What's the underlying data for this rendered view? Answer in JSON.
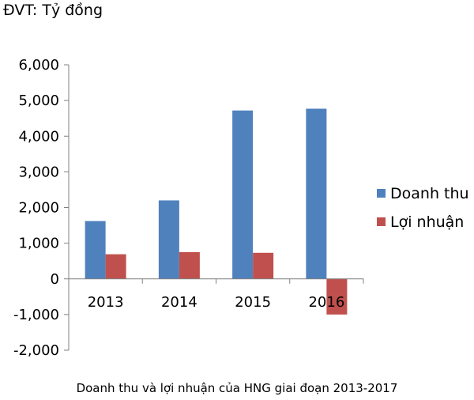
{
  "unit_label": "ĐVT: Tỷ đồng",
  "caption": "Doanh thu và lợi nhuận của HNG giai đoạn 2013-2017",
  "chart_data": {
    "type": "bar",
    "categories": [
      "2013",
      "2014",
      "2015",
      "2016"
    ],
    "series": [
      {
        "name": "Doanh thu",
        "color": "#4F81BD",
        "values": [
          1620,
          2200,
          4720,
          4770
        ]
      },
      {
        "name": "Lợi nhuận",
        "color": "#C0504D",
        "values": [
          690,
          750,
          730,
          -1000
        ]
      }
    ],
    "ylim": [
      -2000,
      6000
    ],
    "yticks": [
      6000,
      5000,
      4000,
      3000,
      2000,
      1000,
      0,
      -1000,
      -2000
    ],
    "ytick_labels": [
      "6,000",
      "5,000",
      "4,000",
      "3,000",
      "2,000",
      "1,000",
      "0",
      "-1,000",
      "-2,000"
    ],
    "grid": false,
    "legend_position": "right"
  }
}
